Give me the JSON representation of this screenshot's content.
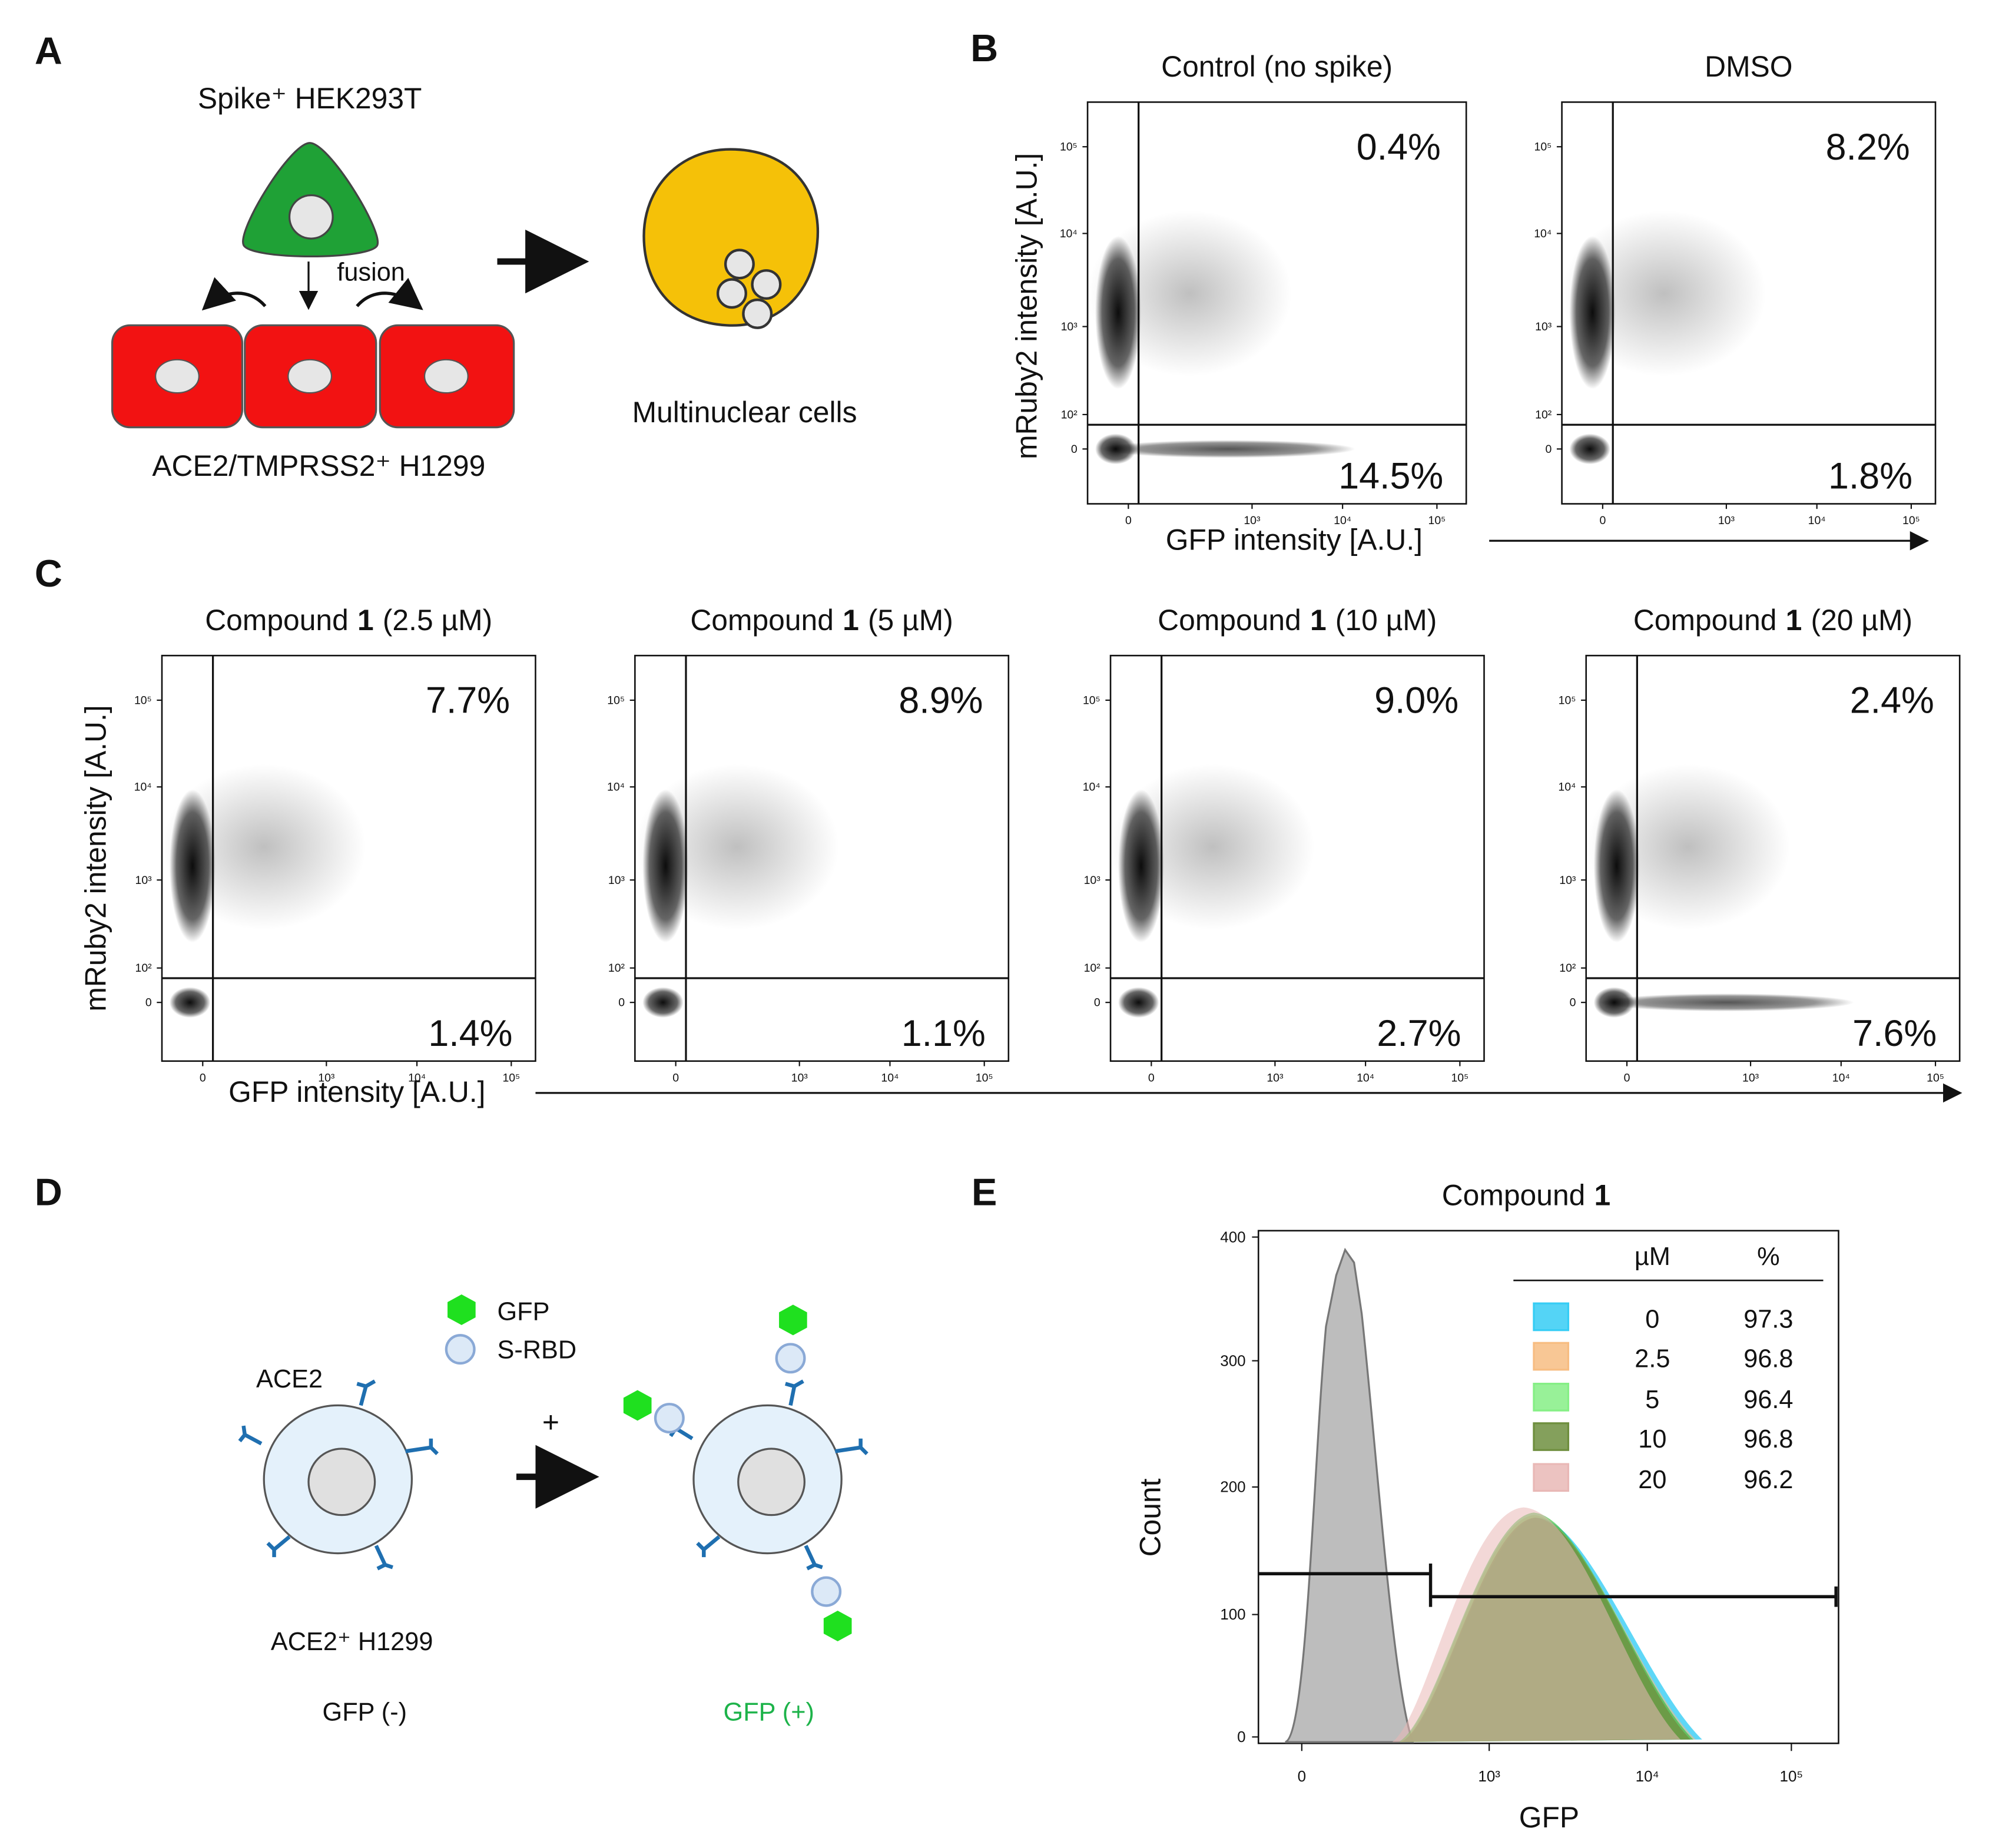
{
  "A": {
    "label": "A",
    "donor": "Spike⁺ HEK293T",
    "fusion": "fusion",
    "acceptor": "ACE2/TMPRSS2⁺ H1299",
    "result": "Multinuclear cells"
  },
  "flow_ticks": {
    "y": [
      "10⁵",
      "10⁴",
      "10³",
      "10²",
      "0"
    ],
    "x": [
      "0",
      "10³",
      "10⁴",
      "10⁵"
    ]
  },
  "B": {
    "label": "B",
    "y_label": "mRuby2 intensity [A.U.]",
    "x_label": "GFP intensity [A.U.]",
    "plots": [
      {
        "title": [
          "Control (no spike)"
        ],
        "upper": "0.4%",
        "lower": "14.5%"
      },
      {
        "title": [
          "DMSO"
        ],
        "upper": "8.2%",
        "lower": "1.8%"
      }
    ]
  },
  "C": {
    "label": "C",
    "y_label": "mRuby2 intensity [A.U.]",
    "x_label": "GFP intensity [A.U.]",
    "plots": [
      {
        "title": [
          "Compound",
          "1",
          "(2.5 µM)"
        ],
        "upper": "7.7%",
        "lower": "1.4%"
      },
      {
        "title": [
          "Compound",
          "1",
          "(5 µM)"
        ],
        "upper": "8.9%",
        "lower": "1.1%"
      },
      {
        "title": [
          "Compound",
          "1",
          "(10 µM)"
        ],
        "upper": "9.0%",
        "lower": "2.7%"
      },
      {
        "title": [
          "Compound",
          "1",
          "(20 µM)"
        ],
        "upper": "2.4%",
        "lower": "7.6%"
      }
    ]
  },
  "D": {
    "label": "D",
    "gfp": "GFP",
    "srbd": "S-RBD",
    "ace2": "ACE2",
    "plus": "+",
    "cell": "ACE2⁺ H1299",
    "negative": "GFP (-)",
    "positive": "GFP (+)"
  },
  "E": {
    "label": "E",
    "title": [
      "Compound",
      "1"
    ],
    "x_label": "GFP",
    "y_label": "Count",
    "yticks": [
      "400",
      "300",
      "200",
      "100",
      "0"
    ],
    "xticks": [
      "0",
      "10³",
      "10⁴",
      "10⁵"
    ],
    "table": {
      "header": [
        "µM",
        "%"
      ],
      "rows": [
        [
          "0",
          "97.3"
        ],
        [
          "2.5",
          "96.8"
        ],
        [
          "5",
          "96.4"
        ],
        [
          "10",
          "96.8"
        ],
        [
          "20",
          "96.2"
        ]
      ],
      "colors": [
        "#36cdf5",
        "#f7bd82",
        "#86ef86",
        "#6f8f3f",
        "#e9b8b6"
      ]
    }
  }
}
